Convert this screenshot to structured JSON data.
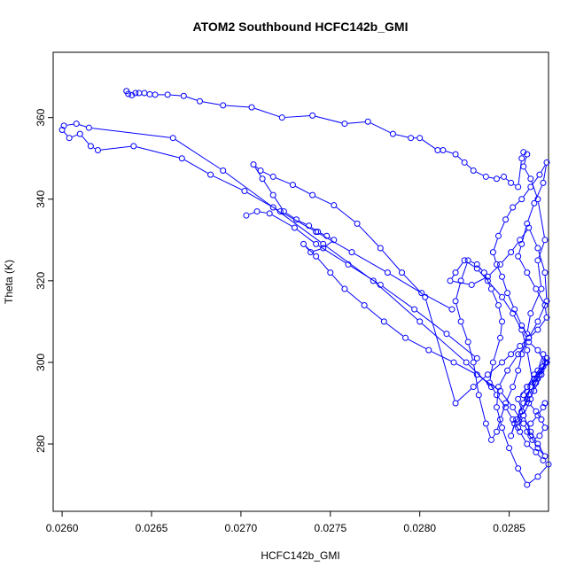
{
  "chart_data": {
    "type": "line",
    "title": "ATOM2 Southbound HCFC142b_GMI",
    "xlabel": "HCFC142b_GMI",
    "ylabel": "Theta (K)",
    "xlim": [
      0.02595,
      0.02872
    ],
    "ylim": [
      263.5,
      376.0
    ],
    "xticks": [
      0.026,
      0.0265,
      0.027,
      0.0275,
      0.028,
      0.0285
    ],
    "xtick_labels": [
      "0.0260",
      "0.0265",
      "0.0270",
      "0.0275",
      "0.0280",
      "0.0285"
    ],
    "yticks": [
      280,
      300,
      320,
      340,
      360
    ],
    "ytick_labels": [
      "280",
      "300",
      "320",
      "340",
      "360"
    ],
    "color": "#0000ff",
    "marker": "open-circle",
    "x": [
      0.02636,
      0.02637,
      0.02639,
      0.02641,
      0.02643,
      0.02646,
      0.02649,
      0.02652,
      0.02659,
      0.02668,
      0.02677,
      0.0269,
      0.02706,
      0.02723,
      0.0274,
      0.02758,
      0.02771,
      0.02785,
      0.02795,
      0.028,
      0.0281,
      0.02813,
      0.0282,
      0.02825,
      0.0283,
      0.02837,
      0.02843,
      0.02847,
      0.02851,
      0.02855,
      0.02857,
      0.02858,
      0.0286,
      0.02858,
      0.02862,
      0.02866,
      0.0287,
      0.02866,
      0.02868,
      0.02862,
      0.0286,
      0.02857,
      0.02855,
      0.02852,
      0.02848,
      0.02845,
      0.02843,
      0.0284,
      0.02837,
      0.02833,
      0.0283,
      0.02827,
      0.02823,
      0.0282,
      0.02823,
      0.02827,
      0.02832,
      0.02836,
      0.0284,
      0.02844,
      0.02846,
      0.02845,
      0.02841,
      0.02839,
      0.02843,
      0.02848,
      0.02852,
      0.02856,
      0.0286,
      0.02865,
      0.02869,
      0.02872,
      0.02866,
      0.0286,
      0.02855,
      0.0285,
      0.02846,
      0.02843,
      0.02844,
      0.02849,
      0.02855,
      0.02861,
      0.02866,
      0.0287,
      0.02867,
      0.02862,
      0.0286,
      0.02857,
      0.02853,
      0.02851,
      0.02854,
      0.02858,
      0.02862,
      0.02866,
      0.02869,
      0.02871,
      0.02866,
      0.02861,
      0.02857,
      0.02855,
      0.02858,
      0.02862,
      0.02865,
      0.02869,
      0.02871,
      0.02868,
      0.02864,
      0.0286,
      0.02857,
      0.02852,
      0.02846,
      0.02838,
      0.02832,
      0.02825,
      0.0282,
      0.02817,
      0.02829,
      0.02838,
      0.02845,
      0.02851,
      0.02856,
      0.02861,
      0.02866,
      0.0287,
      0.02871,
      0.02866,
      0.02861,
      0.02857,
      0.02853,
      0.02849,
      0.02846,
      0.02843,
      0.02841,
      0.02844,
      0.02848,
      0.02852,
      0.02857,
      0.02862,
      0.02867,
      0.02871,
      0.02869,
      0.02864,
      0.0286,
      0.02857,
      0.02855,
      0.0286,
      0.02865,
      0.0287,
      0.02871,
      0.02866,
      0.02861,
      0.02856,
      0.02851,
      0.02846,
      0.02838,
      0.0283,
      0.0282,
      0.02803,
      0.0279,
      0.02778,
      0.02765,
      0.02752,
      0.0274,
      0.02729,
      0.02718,
      0.02711,
      0.02707,
      0.02712,
      0.02718,
      0.02724,
      0.02731,
      0.02738,
      0.02743,
      0.02748,
      0.02752,
      0.02746,
      0.02739,
      0.02735,
      0.02742,
      0.0275,
      0.02758,
      0.02769,
      0.0278,
      0.02792,
      0.02805,
      0.02819,
      0.02832,
      0.02845,
      0.02852,
      0.02858,
      0.02862,
      0.02866,
      0.0287,
      0.02866,
      0.02862,
      0.02858,
      0.02855,
      0.0286,
      0.02864,
      0.02869,
      0.02871,
      0.02868,
      0.02864,
      0.0286,
      0.02858,
      0.02861,
      0.02865,
      0.02868,
      0.0287,
      0.02867,
      0.02863,
      0.0286,
      0.02862,
      0.02866,
      0.02869,
      0.0287
    ],
    "y": [
      366.5,
      365.8,
      365.5,
      366.0,
      366.0,
      366.0,
      365.7,
      365.6,
      365.6,
      365.3,
      364.0,
      363.0,
      362.5,
      360.0,
      360.5,
      358.5,
      359.0,
      356.0,
      355.0,
      355.0,
      352.0,
      352.0,
      351.0,
      349.0,
      347.0,
      345.5,
      345.0,
      345.5,
      344.0,
      343.0,
      350.0,
      351.5,
      351.0,
      348.0,
      345.0,
      340.0,
      330.0,
      325.0,
      318.0,
      312.0,
      307.0,
      302.0,
      298.0,
      294.0,
      290.0,
      286.0,
      283.0,
      281.0,
      285.0,
      292.0,
      300.0,
      305.0,
      310.0,
      315.0,
      320.0,
      325.0,
      324.0,
      322.0,
      318.0,
      314.0,
      310.0,
      306.0,
      300.0,
      295.0,
      292.0,
      289.0,
      286.0,
      283.0,
      280.0,
      278.0,
      276.0,
      275.0,
      272.0,
      270.0,
      274.0,
      279.0,
      284.0,
      289.0,
      294.0,
      298.0,
      302.0,
      305.0,
      303.0,
      300.0,
      297.0,
      294.0,
      291.0,
      288.0,
      285.0,
      282.0,
      286.0,
      290.0,
      294.0,
      298.0,
      302.0,
      300.0,
      296.0,
      292.0,
      288.0,
      284.0,
      287.0,
      291.0,
      295.0,
      299.0,
      301.0,
      297.0,
      293.0,
      303.0,
      308.0,
      312.0,
      316.0,
      320.0,
      323.0,
      325.0,
      322.0,
      320.0,
      319.0,
      321.0,
      324.0,
      327.0,
      330.0,
      333.0,
      328.0,
      322.0,
      315.0,
      310.0,
      306.0,
      309.0,
      313.0,
      317.0,
      321.0,
      324.0,
      327.0,
      331.0,
      335.0,
      338.0,
      340.0,
      343.0,
      346.0,
      349.0,
      344.0,
      339.0,
      334.0,
      329.0,
      326.0,
      322.0,
      318.0,
      314.0,
      311.0,
      308.0,
      306.0,
      304.0,
      302.0,
      300.0,
      297.0,
      294.0,
      290.0,
      316.0,
      322.0,
      328.0,
      334.0,
      338.5,
      341.0,
      343.5,
      345.5,
      347.0,
      348.5,
      345.0,
      341.0,
      337.0,
      335.0,
      333.5,
      332.0,
      331.0,
      330.0,
      328.0,
      327.0,
      329.0,
      326.0,
      322.0,
      318.0,
      314.0,
      310.0,
      306.0,
      303.0,
      300.0,
      297.0,
      293.0,
      289.0,
      285.0,
      282.0,
      279.0,
      277.0,
      280.0,
      283.0,
      287.0,
      291.0,
      294.0,
      297.0,
      299.0,
      300.0,
      298.0,
      296.0,
      294.0,
      292.0,
      290.0,
      288.0,
      286.0,
      284.0,
      282.0,
      281.0,
      283.0,
      285.0,
      287.0,
      289.0,
      290.0
    ],
    "extra_segments": [
      {
        "x": [
          0.026,
          0.02604,
          0.0261,
          0.02616,
          0.0262,
          0.0264,
          0.02667,
          0.02683,
          0.02702,
          0.02722,
          0.02742,
          0.02762,
          0.02782,
          0.02801,
          0.02818
        ],
        "y": [
          357.0,
          355.0,
          356.0,
          353.0,
          352.0,
          353.0,
          350.0,
          346.0,
          342.0,
          337.0,
          332.0,
          327.0,
          322.0,
          317.0,
          313.0
        ]
      },
      {
        "x": [
          0.02601,
          0.02608,
          0.02615,
          0.02662,
          0.0269,
          0.02718,
          0.02746,
          0.02774,
          0.028,
          0.02826,
          0.0284
        ],
        "y": [
          358.0,
          358.5,
          357.5,
          355.0,
          347.0,
          338.0,
          329.0,
          320.0,
          310.0,
          300.0,
          294.0
        ]
      },
      {
        "x": [
          0.02703,
          0.02709,
          0.02716,
          0.0273,
          0.02742,
          0.0276,
          0.02778,
          0.02797,
          0.02815,
          0.02832
        ],
        "y": [
          336.0,
          337.0,
          336.5,
          333.0,
          329.0,
          324.0,
          319.0,
          313.0,
          307.0,
          301.0
        ]
      }
    ]
  }
}
